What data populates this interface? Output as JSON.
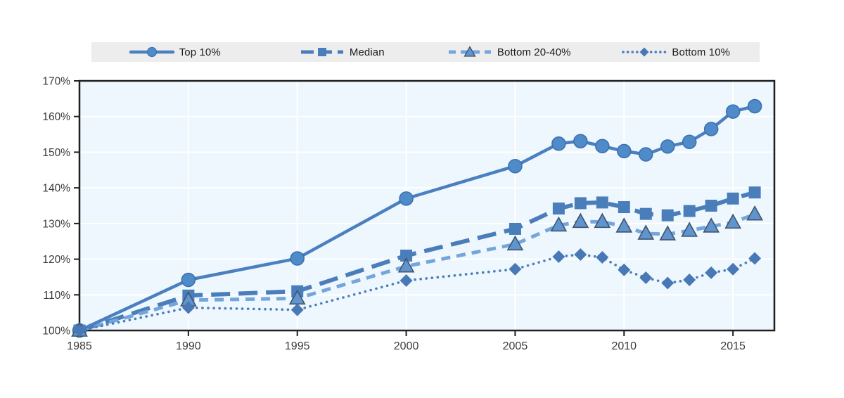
{
  "page": {
    "background": "#ffffff"
  },
  "legend": {
    "background": "#ededed",
    "text_color": "#1c1c1c",
    "items": [
      {
        "label": "Top 10%",
        "series_id": "top10"
      },
      {
        "label": "Median",
        "series_id": "median"
      },
      {
        "label": "Bottom 20-40%",
        "series_id": "bottom2040"
      },
      {
        "label": "Bottom 10%",
        "series_id": "bottom10"
      }
    ]
  },
  "colors": {
    "plot_background": "#eef7fd",
    "gridline": "#ffffff",
    "axis": "#1f1f1f",
    "tick_label": "#3a3a3a",
    "blue_main": "#4a7ebb",
    "blue_light": "#74a6db"
  },
  "chart_data": {
    "type": "line",
    "title": "",
    "xlabel": "",
    "ylabel": "",
    "x": [
      1985,
      1990,
      1995,
      2000,
      2005,
      2007,
      2008,
      2009,
      2010,
      2011,
      2012,
      2013,
      2014,
      2015,
      2016
    ],
    "series": [
      {
        "id": "top10",
        "name": "Top 10%",
        "line_style": "solid",
        "marker": "circle",
        "line_color": "#4a80c0",
        "marker_fill": "#4f8bc9",
        "marker_stroke": "#3a6fae",
        "values": [
          100,
          114.2,
          120.2,
          137.0,
          146.1,
          152.4,
          153.1,
          151.7,
          150.3,
          149.4,
          151.6,
          152.9,
          156.5,
          161.4,
          162.9
        ]
      },
      {
        "id": "median",
        "name": "Median",
        "line_style": "longdash",
        "marker": "square",
        "line_color": "#4a7ebb",
        "marker_fill": "#4a7ebb",
        "marker_stroke": "#3f6ea6",
        "values": [
          100,
          109.8,
          111.0,
          121.0,
          128.5,
          134.2,
          135.7,
          135.9,
          134.6,
          132.7,
          132.3,
          133.5,
          135.0,
          137.0,
          138.7
        ]
      },
      {
        "id": "bottom2040",
        "name": "Bottom 20-40%",
        "line_style": "dash",
        "marker": "triangle",
        "line_color": "#74a6db",
        "marker_fill": "#5f94cf",
        "marker_stroke": "#41546b",
        "values": [
          100,
          108.5,
          109.0,
          118.0,
          124.2,
          129.5,
          130.5,
          130.5,
          129.2,
          127.2,
          127.0,
          128.0,
          129.2,
          130.3,
          132.6
        ]
      },
      {
        "id": "bottom10",
        "name": "Bottom 10%",
        "line_style": "dot",
        "marker": "diamond",
        "line_color": "#4a7ebb",
        "marker_fill": "#4878b6",
        "marker_stroke": "#4878b6",
        "values": [
          100,
          106.4,
          105.8,
          114.0,
          117.2,
          120.7,
          121.3,
          120.5,
          117.0,
          114.8,
          113.3,
          114.2,
          116.2,
          117.2,
          120.2
        ]
      }
    ],
    "x_ticks": [
      1985,
      1990,
      1995,
      2000,
      2005,
      2010,
      2015
    ],
    "x_tick_labels": [
      "1985",
      "1990",
      "1995",
      "2000",
      "2005",
      "2010",
      "2015"
    ],
    "y_ticks": [
      100,
      110,
      120,
      130,
      140,
      150,
      160,
      170
    ],
    "y_tick_labels": [
      "100%",
      "110%",
      "120%",
      "130%",
      "140%",
      "150%",
      "160%",
      "170%"
    ],
    "x_domain": [
      1985,
      2016.9
    ],
    "y_domain": [
      100,
      170
    ],
    "grid": true,
    "legend_position": "top"
  }
}
